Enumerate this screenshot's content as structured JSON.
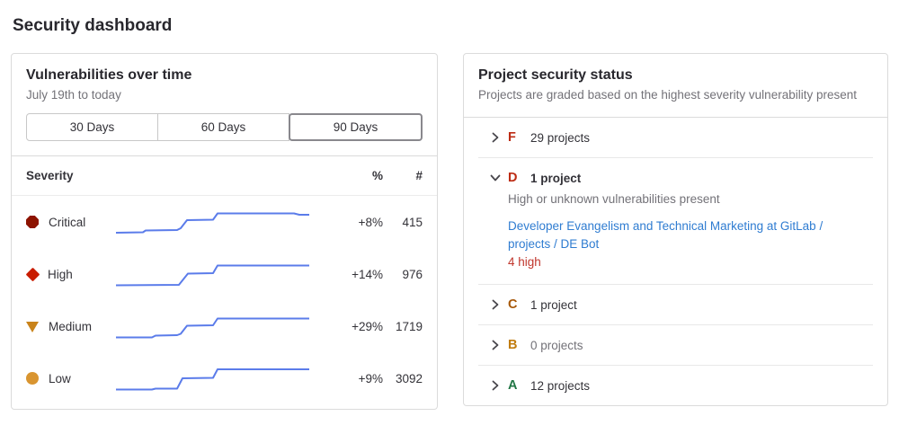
{
  "page": {
    "title": "Security dashboard"
  },
  "colors": {
    "sparkline": "#5b7cea",
    "link_blue": "#2f7cd1",
    "detail_red": "#c0362c",
    "card_border": "#dbdbdb"
  },
  "vuln_panel": {
    "title": "Vulnerabilities over time",
    "subtitle": "July 19th to today",
    "range_buttons": [
      {
        "label": "30 Days",
        "selected": false
      },
      {
        "label": "60 Days",
        "selected": false
      },
      {
        "label": "90 Days",
        "selected": true
      }
    ],
    "table": {
      "headers": {
        "severity": "Severity",
        "percent": "%",
        "count": "#"
      },
      "rows": [
        {
          "severity": "Critical",
          "icon": "severity-critical-icon",
          "icon_color": "#8d1300",
          "percent": "+8%",
          "count": "415",
          "spark_points": [
            [
              0,
              29
            ],
            [
              30,
              28.5
            ],
            [
              33,
              26.5
            ],
            [
              68,
              26
            ],
            [
              72,
              24
            ],
            [
              79,
              15
            ],
            [
              108,
              14.5
            ],
            [
              113,
              7.5
            ],
            [
              198,
              7.5
            ],
            [
              204,
              9
            ],
            [
              215,
              9
            ]
          ]
        },
        {
          "severity": "High",
          "icon": "severity-high-icon",
          "icon_color": "#c91c00",
          "percent": "+14%",
          "count": "976",
          "spark_points": [
            [
              0,
              29.5
            ],
            [
              70,
              29
            ],
            [
              80,
              16.5
            ],
            [
              108,
              16
            ],
            [
              113,
              7.5
            ],
            [
              215,
              7.5
            ]
          ]
        },
        {
          "severity": "Medium",
          "icon": "severity-medium-icon",
          "icon_color": "#c9831a",
          "percent": "+29%",
          "count": "1719",
          "spark_points": [
            [
              0,
              29.5
            ],
            [
              40,
              29.5
            ],
            [
              44,
              27.5
            ],
            [
              68,
              27
            ],
            [
              72,
              25.5
            ],
            [
              79,
              16.5
            ],
            [
              108,
              16
            ],
            [
              113,
              8.5
            ],
            [
              215,
              8.5
            ]
          ]
        },
        {
          "severity": "Low",
          "icon": "severity-low-icon",
          "icon_color": "#d99530",
          "percent": "+9%",
          "count": "3092",
          "spark_points": [
            [
              0,
              29.5
            ],
            [
              40,
              29.5
            ],
            [
              44,
              28.5
            ],
            [
              68,
              28.5
            ],
            [
              74,
              17
            ],
            [
              108,
              16.5
            ],
            [
              113,
              7
            ],
            [
              215,
              7
            ]
          ]
        }
      ]
    }
  },
  "status_panel": {
    "title": "Project security status",
    "subtitle": "Projects are graded based on the highest severity vulnerability present",
    "groups": [
      {
        "grade": "F",
        "grade_color": "#bd2c14",
        "count_label": "29 projects",
        "expanded": false
      },
      {
        "grade": "D",
        "grade_color": "#bd2c14",
        "count_label": "1 project",
        "expanded": true,
        "description": "High or unknown vulnerabilities present",
        "projects": [
          {
            "name": "Developer Evangelism and Technical Marketing at GitLab / projects / DE Bot",
            "detail": "4 high"
          }
        ]
      },
      {
        "grade": "C",
        "grade_color": "#a65708",
        "count_label": "1 project",
        "expanded": false
      },
      {
        "grade": "B",
        "grade_color": "#c17d10",
        "count_label": "0 projects",
        "expanded": false,
        "muted": true
      },
      {
        "grade": "A",
        "grade_color": "#217645",
        "count_label": "12 projects",
        "expanded": false
      }
    ]
  }
}
